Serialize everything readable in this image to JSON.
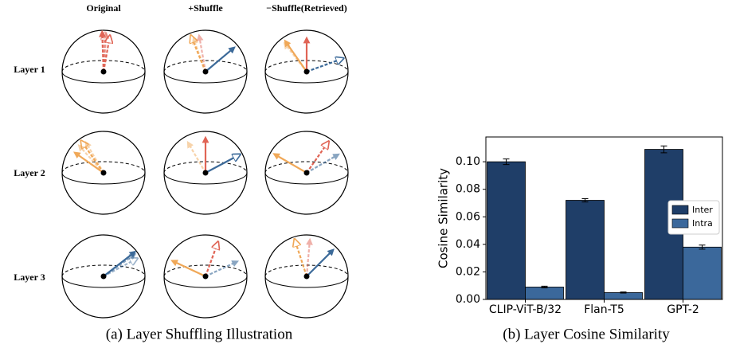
{
  "diagram": {
    "columns": [
      "Original",
      "+Shuffle",
      "−Shuffle(Retrieved)"
    ],
    "rows": [
      "Layer 1",
      "Layer 2",
      "Layer 3"
    ],
    "caption": "(a) Layer Shuffling Illustration"
  },
  "chart_data": {
    "type": "bar",
    "caption": "(b) Layer Cosine Similarity",
    "y_label": "Cosine Similarity",
    "categories": [
      "CLIP-ViT-B/32",
      "Flan-T5",
      "GPT-2"
    ],
    "series": [
      {
        "name": "Inter",
        "color": "#1f3e68",
        "values": [
          0.1,
          0.072,
          0.109
        ],
        "errors": [
          0.002,
          0.0012,
          0.0025
        ]
      },
      {
        "name": "Intra",
        "color": "#3b689b",
        "values": [
          0.009,
          0.005,
          0.038
        ],
        "errors": [
          0.0006,
          0.0004,
          0.0015
        ]
      }
    ],
    "ylim": [
      0,
      0.118
    ],
    "yticks": [
      {
        "value": 0,
        "label": "0.00"
      },
      {
        "value": 0.02,
        "label": "0.02"
      },
      {
        "value": 0.04,
        "label": "0.04"
      },
      {
        "value": 0.06,
        "label": "0.06"
      },
      {
        "value": 0.08,
        "label": "0.08"
      },
      {
        "value": 0.1,
        "label": "0.10"
      }
    ],
    "legend": "right"
  }
}
